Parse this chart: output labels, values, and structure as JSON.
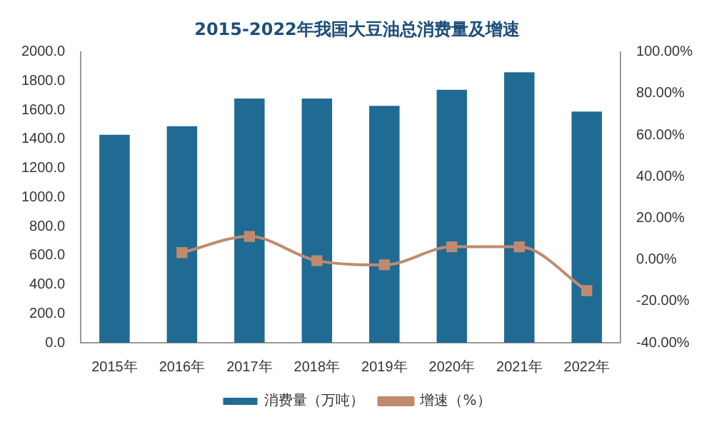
{
  "chart_data": {
    "type": "bar",
    "title": "2015-2022年我国大豆油总消费量及增速",
    "categories": [
      "2015年",
      "2016年",
      "2017年",
      "2018年",
      "2019年",
      "2020年",
      "2021年",
      "2022年"
    ],
    "series": [
      {
        "name": "消费量（万吨）",
        "color": "#1f6b94",
        "values": [
          1430,
          1490,
          1680,
          1680,
          1630,
          1740,
          1860,
          1590
        ]
      },
      {
        "name": "增速（%）",
        "type": "line",
        "axis": "y2",
        "color": "#c08a6e",
        "marker": "square",
        "values": [
          null,
          3.4,
          11.2,
          -0.5,
          -2.5,
          6.2,
          6.2,
          -14.9
        ]
      }
    ],
    "ylim": [
      0,
      2000
    ],
    "yticks": [
      {
        "value": 0,
        "label": "0.0"
      },
      {
        "value": 200,
        "label": "200.0"
      },
      {
        "value": 400,
        "label": "400.0"
      },
      {
        "value": 600,
        "label": "600.0"
      },
      {
        "value": 800,
        "label": "800.0"
      },
      {
        "value": 1000,
        "label": "1000.0"
      },
      {
        "value": 1200,
        "label": "1200.0"
      },
      {
        "value": 1400,
        "label": "1400.0"
      },
      {
        "value": 1600,
        "label": "1600.0"
      },
      {
        "value": 1800,
        "label": "1800.0"
      },
      {
        "value": 2000,
        "label": "2000.0"
      }
    ],
    "y2lim": [
      -40,
      100
    ],
    "y2ticks": [
      {
        "value": -40,
        "label": "-40.00%"
      },
      {
        "value": -20,
        "label": "-20.00%"
      },
      {
        "value": 0,
        "label": "0.00%"
      },
      {
        "value": 20,
        "label": "20.00%"
      },
      {
        "value": 40,
        "label": "40.00%"
      },
      {
        "value": 60,
        "label": "60.00%"
      },
      {
        "value": 80,
        "label": "80.00%"
      },
      {
        "value": 100,
        "label": "100.00%"
      }
    ],
    "legend": "bottom"
  }
}
